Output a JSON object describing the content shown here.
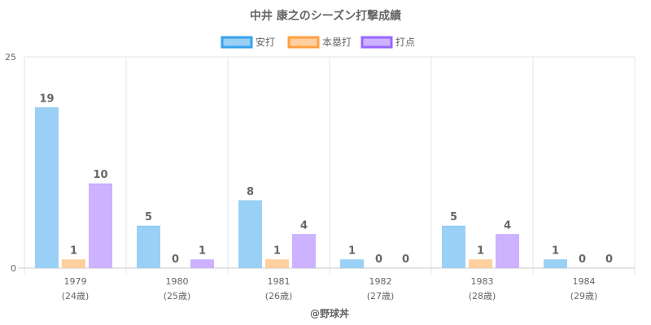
{
  "chart_data": {
    "type": "bar",
    "title": "中井 康之のシーズン打撃成績",
    "categories": [
      "1979",
      "1980",
      "1981",
      "1982",
      "1983",
      "1984"
    ],
    "sublabels": [
      "(24歳)",
      "(25歳)",
      "(26歳)",
      "(27歳)",
      "(28歳)",
      "(29歳)"
    ],
    "series": [
      {
        "name": "安打",
        "values": [
          19,
          5,
          8,
          1,
          5,
          1
        ],
        "color": "#9ad0f5",
        "border": "#36a2eb"
      },
      {
        "name": "本塁打",
        "values": [
          1,
          0,
          1,
          0,
          1,
          0
        ],
        "color": "#ffcf9f",
        "border": "#ff9f40"
      },
      {
        "name": "打点",
        "values": [
          10,
          1,
          4,
          0,
          4,
          0
        ],
        "color": "#ccb2ff",
        "border": "#9966ff"
      }
    ],
    "ylim": [
      0,
      25
    ],
    "yticks": [
      "0",
      "25"
    ],
    "legend_position": "top",
    "grid": true
  },
  "credit": "@野球丼"
}
